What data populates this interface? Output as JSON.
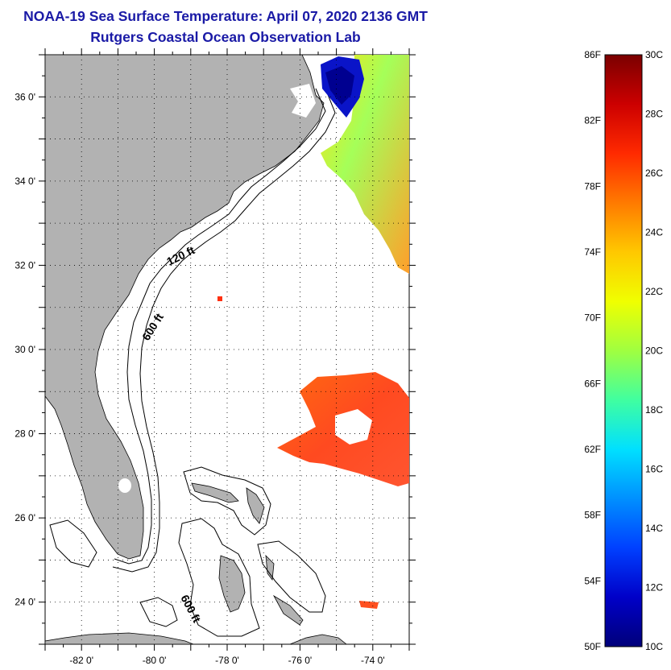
{
  "header": {
    "title": "NOAA-19 Sea Surface Temperature:  April 07, 2020 2136 GMT",
    "subtitle": "Rutgers Coastal Ocean Observation Lab"
  },
  "map": {
    "lon_range": [
      -83,
      -73
    ],
    "lat_range": [
      23,
      37
    ],
    "x_ticks": [
      "-82 0'",
      "-80 0'",
      "-78 0'",
      "-76 0'",
      "-74 0'"
    ],
    "y_ticks": [
      "36 0'",
      "34 0'",
      "32 0'",
      "30 0'",
      "28 0'",
      "26 0'",
      "24 0'"
    ],
    "grid": "dotted",
    "land_color": "#b2b2b2",
    "contours": [
      {
        "label": "120 ft"
      },
      {
        "label": "600 ft"
      },
      {
        "label": "600 ft"
      }
    ]
  },
  "colorbar": {
    "left_labels": [
      "86F",
      "82F",
      "78F",
      "74F",
      "70F",
      "66F",
      "62F",
      "58F",
      "54F",
      "50F"
    ],
    "right_labels": [
      "30C",
      "28C",
      "26C",
      "24C",
      "22C",
      "20C",
      "18C",
      "16C",
      "14C",
      "12C",
      "10C"
    ],
    "colors": [
      "#7a0000",
      "#cc0000",
      "#ff2a00",
      "#ff7a00",
      "#ffc800",
      "#f0ff00",
      "#a0ff40",
      "#40ffa0",
      "#00e0ff",
      "#0090ff",
      "#0040ff",
      "#0000c8",
      "#00007a"
    ]
  }
}
